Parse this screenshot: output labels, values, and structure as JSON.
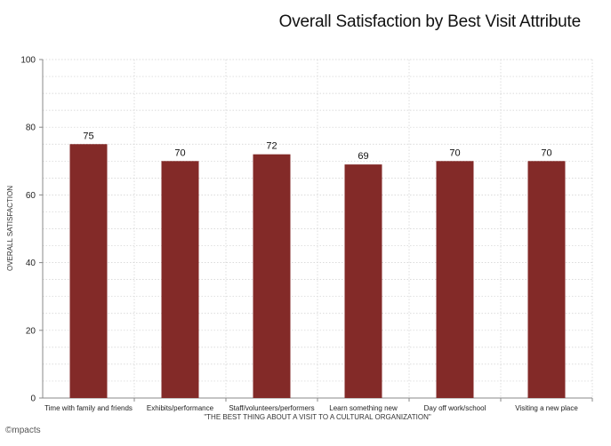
{
  "chart_data": {
    "type": "bar",
    "title": "Overall Satisfaction by Best Visit Attribute",
    "xlabel": "\"THE BEST THING ABOUT A VISIT TO A CULTURAL ORGANIZATION\"",
    "ylabel": "OVERALL SATISFACTION",
    "categories": [
      "Time with family and friends",
      "Exhibits/performance",
      "Staff/volunteers/performers",
      "Learn something new",
      "Day off work/school",
      "Visiting a new place"
    ],
    "values": [
      75,
      70,
      72,
      69,
      70,
      70
    ],
    "ylim": [
      0,
      100
    ],
    "yticks": [
      0,
      20,
      40,
      60,
      80,
      100
    ],
    "grid": true,
    "bar_color": "#832a28"
  },
  "footer": {
    "logo_text": "©mpacts"
  }
}
